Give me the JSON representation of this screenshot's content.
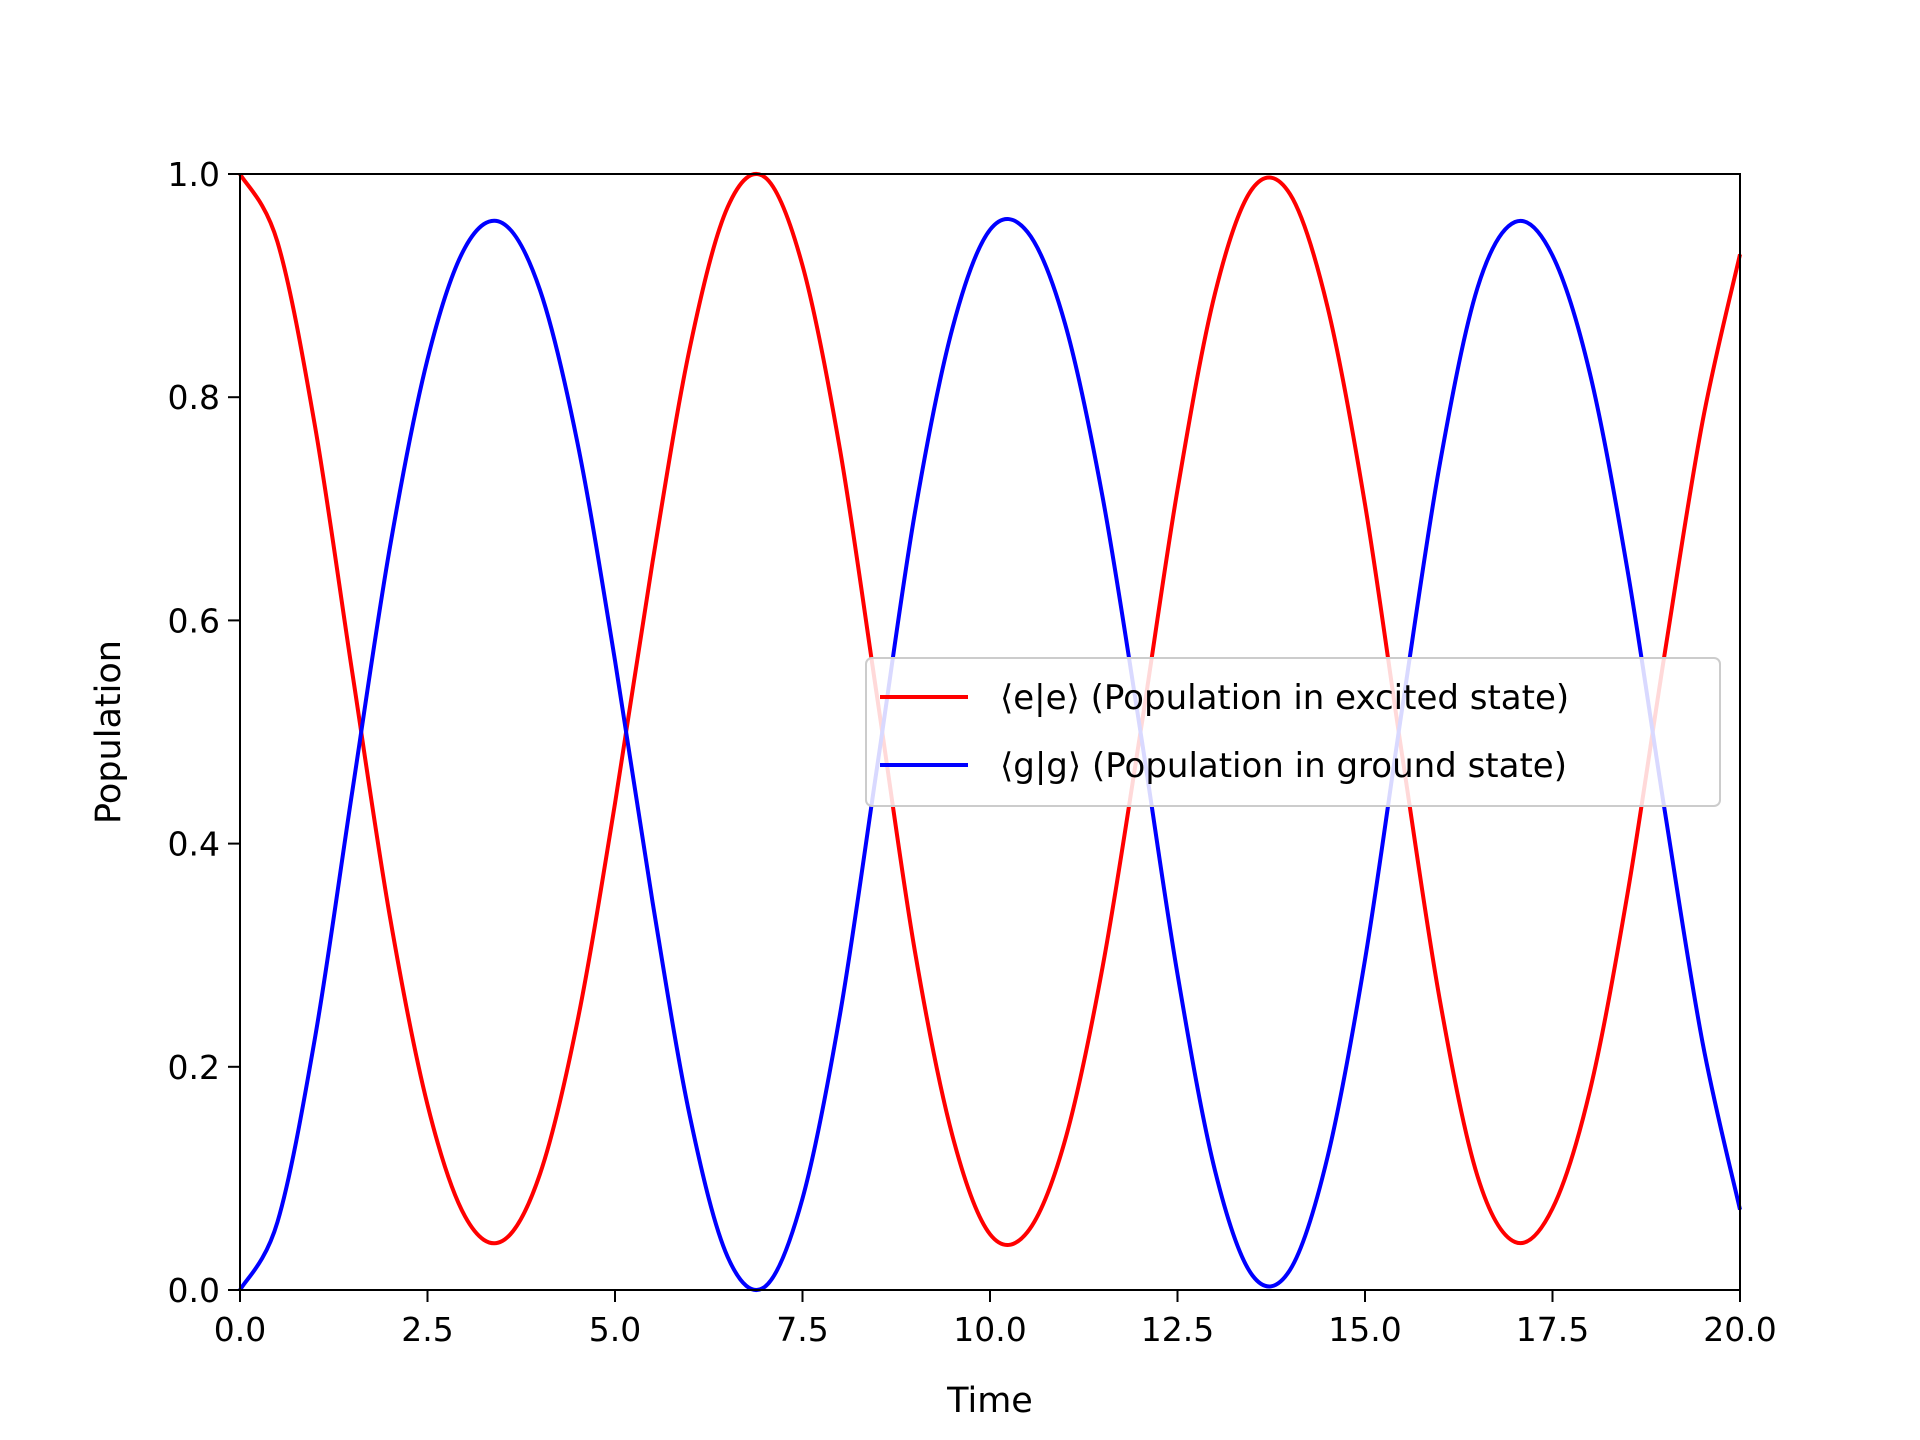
{
  "chart_data": {
    "type": "line",
    "title": "",
    "xlabel": "Time",
    "ylabel": "Population",
    "xlim": [
      0,
      20
    ],
    "ylim": [
      0,
      1
    ],
    "grid": false,
    "legend_position": "center-right",
    "x_ticks": [
      0,
      2.5,
      5,
      7.5,
      10,
      12.5,
      15,
      17.5,
      20
    ],
    "x_tick_labels": [
      "0.0",
      "2.5",
      "5.0",
      "7.5",
      "10.0",
      "12.5",
      "15.0",
      "17.5",
      "20.0"
    ],
    "y_ticks": [
      0,
      0.2,
      0.4,
      0.6,
      0.8,
      1.0
    ],
    "y_tick_labels": [
      "0.0",
      "0.2",
      "0.4",
      "0.6",
      "0.8",
      "1.0"
    ],
    "x": [
      0,
      0.5,
      1,
      1.5,
      2,
      2.5,
      3,
      3.5,
      4,
      4.5,
      5,
      5.5,
      6,
      6.5,
      7,
      7.5,
      8,
      8.5,
      9,
      9.5,
      10,
      10.5,
      11,
      11.5,
      12,
      12.5,
      13,
      13.5,
      14,
      14.5,
      15,
      15.5,
      16,
      16.5,
      17,
      17.5,
      18,
      18.5,
      19,
      19.5,
      20
    ],
    "series": [
      {
        "name": "⟨e|e⟩ (Population in excited state)",
        "color": "#ff0000",
        "values": [
          1.0,
          0.939,
          0.774,
          0.552,
          0.334,
          0.166,
          0.066,
          0.044,
          0.104,
          0.241,
          0.436,
          0.652,
          0.845,
          0.97,
          0.997,
          0.918,
          0.753,
          0.529,
          0.303,
          0.138,
          0.05,
          0.052,
          0.134,
          0.289,
          0.497,
          0.717,
          0.893,
          0.987,
          0.982,
          0.881,
          0.704,
          0.477,
          0.259,
          0.102,
          0.043,
          0.073,
          0.179,
          0.355,
          0.572,
          0.778,
          0.928
        ]
      },
      {
        "name": "⟨g|g⟩ (Population in ground state)",
        "color": "#0000ff",
        "values": [
          0.0,
          0.061,
          0.226,
          0.448,
          0.666,
          0.834,
          0.934,
          0.956,
          0.896,
          0.759,
          0.564,
          0.348,
          0.155,
          0.03,
          0.003,
          0.082,
          0.247,
          0.471,
          0.697,
          0.862,
          0.95,
          0.948,
          0.866,
          0.711,
          0.503,
          0.283,
          0.107,
          0.013,
          0.018,
          0.119,
          0.296,
          0.523,
          0.741,
          0.898,
          0.957,
          0.927,
          0.821,
          0.645,
          0.428,
          0.222,
          0.072
        ]
      }
    ]
  }
}
